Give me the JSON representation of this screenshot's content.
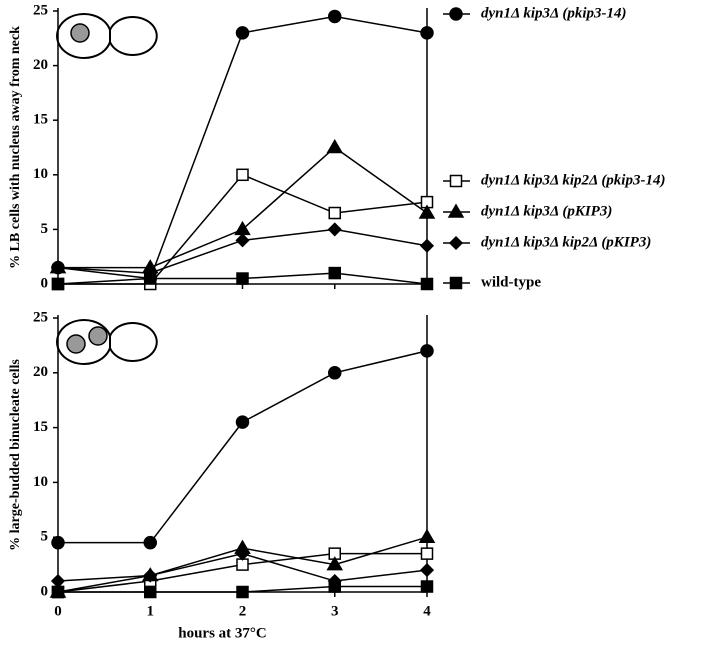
{
  "chart_data": [
    {
      "type": "line",
      "y_label": "% LB cells with nucleus away from neck",
      "x": [
        0,
        1,
        2,
        3,
        4
      ],
      "xlim": [
        0,
        4
      ],
      "xticks": [
        0,
        1,
        2,
        3,
        4
      ],
      "ylim": [
        0,
        25
      ],
      "yticks": [
        0,
        5,
        10,
        15,
        20,
        25
      ],
      "series": [
        {
          "name": "dyn1Δ kip3Δ (pkip3-14)",
          "marker": "circle",
          "filled": true,
          "color": "#000",
          "values": [
            1.5,
            0.5,
            23,
            24.5,
            23
          ]
        },
        {
          "name": "dyn1Δ kip3Δ kip2Δ (pkip3-14)",
          "marker": "square",
          "filled": false,
          "color": "#000",
          "values": [
            0,
            0,
            10,
            6.5,
            7.5
          ]
        },
        {
          "name": "dyn1Δ kip3Δ (pKIP3)",
          "marker": "triangle",
          "filled": true,
          "color": "#000",
          "values": [
            1.5,
            1.5,
            5,
            12.5,
            6.5
          ]
        },
        {
          "name": "dyn1Δ kip3Δ kip2Δ (pKIP3)",
          "marker": "diamond",
          "filled": true,
          "color": "#000",
          "values": [
            1.5,
            1,
            4,
            5,
            3.5
          ]
        },
        {
          "name": "wild-type",
          "marker": "square",
          "filled": true,
          "color": "#000",
          "values": [
            0,
            0.5,
            0.5,
            1,
            0
          ]
        }
      ]
    },
    {
      "type": "line",
      "y_label": "% large-budded binucleate cells",
      "x_label": "hours at 37°C",
      "x": [
        0,
        1,
        2,
        3,
        4
      ],
      "xlim": [
        0,
        4
      ],
      "xticks": [
        0,
        1,
        2,
        3,
        4
      ],
      "ylim": [
        0,
        25
      ],
      "yticks": [
        0,
        5,
        10,
        15,
        20,
        25
      ],
      "series": [
        {
          "marker": "circle",
          "filled": true,
          "color": "#000",
          "values": [
            4.5,
            4.5,
            15.5,
            20,
            22
          ]
        },
        {
          "marker": "square",
          "filled": false,
          "color": "#000",
          "values": [
            0,
            1,
            2.5,
            3.5,
            3.5
          ]
        },
        {
          "marker": "triangle",
          "filled": true,
          "color": "#000",
          "values": [
            0,
            1.5,
            4,
            2.5,
            5
          ]
        },
        {
          "marker": "diamond",
          "filled": true,
          "color": "#000",
          "values": [
            1,
            1.5,
            3.5,
            1,
            2
          ]
        },
        {
          "marker": "square",
          "filled": true,
          "color": "#000",
          "values": [
            0,
            0,
            0,
            0.5,
            0.5
          ]
        }
      ]
    }
  ]
}
